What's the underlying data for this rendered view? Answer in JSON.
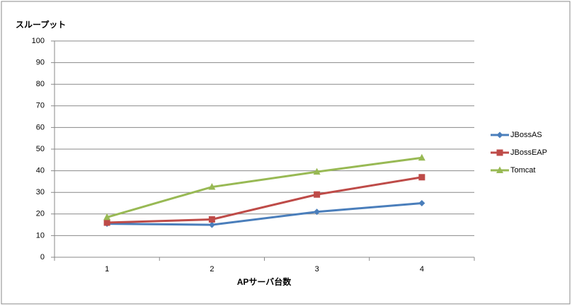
{
  "chart_data": {
    "type": "line",
    "y_label": "スループット",
    "x_label": "APサーバ台数",
    "categories": [
      "1",
      "2",
      "3",
      "4"
    ],
    "series": [
      {
        "name": "JBossAS",
        "color": "#4a7ebb",
        "marker": "diamond",
        "values": [
          15.5,
          15,
          21,
          25
        ]
      },
      {
        "name": "JBossEAP",
        "color": "#be4b48",
        "marker": "square",
        "values": [
          16,
          17.5,
          29,
          37
        ]
      },
      {
        "name": "Tomcat",
        "color": "#98b954",
        "marker": "triangle",
        "values": [
          18.5,
          32.5,
          39.5,
          46
        ]
      }
    ],
    "ylim": [
      0,
      100
    ],
    "yticks": [
      0,
      10,
      20,
      30,
      40,
      50,
      60,
      70,
      80,
      90,
      100
    ],
    "grid": true,
    "legend": "right"
  }
}
